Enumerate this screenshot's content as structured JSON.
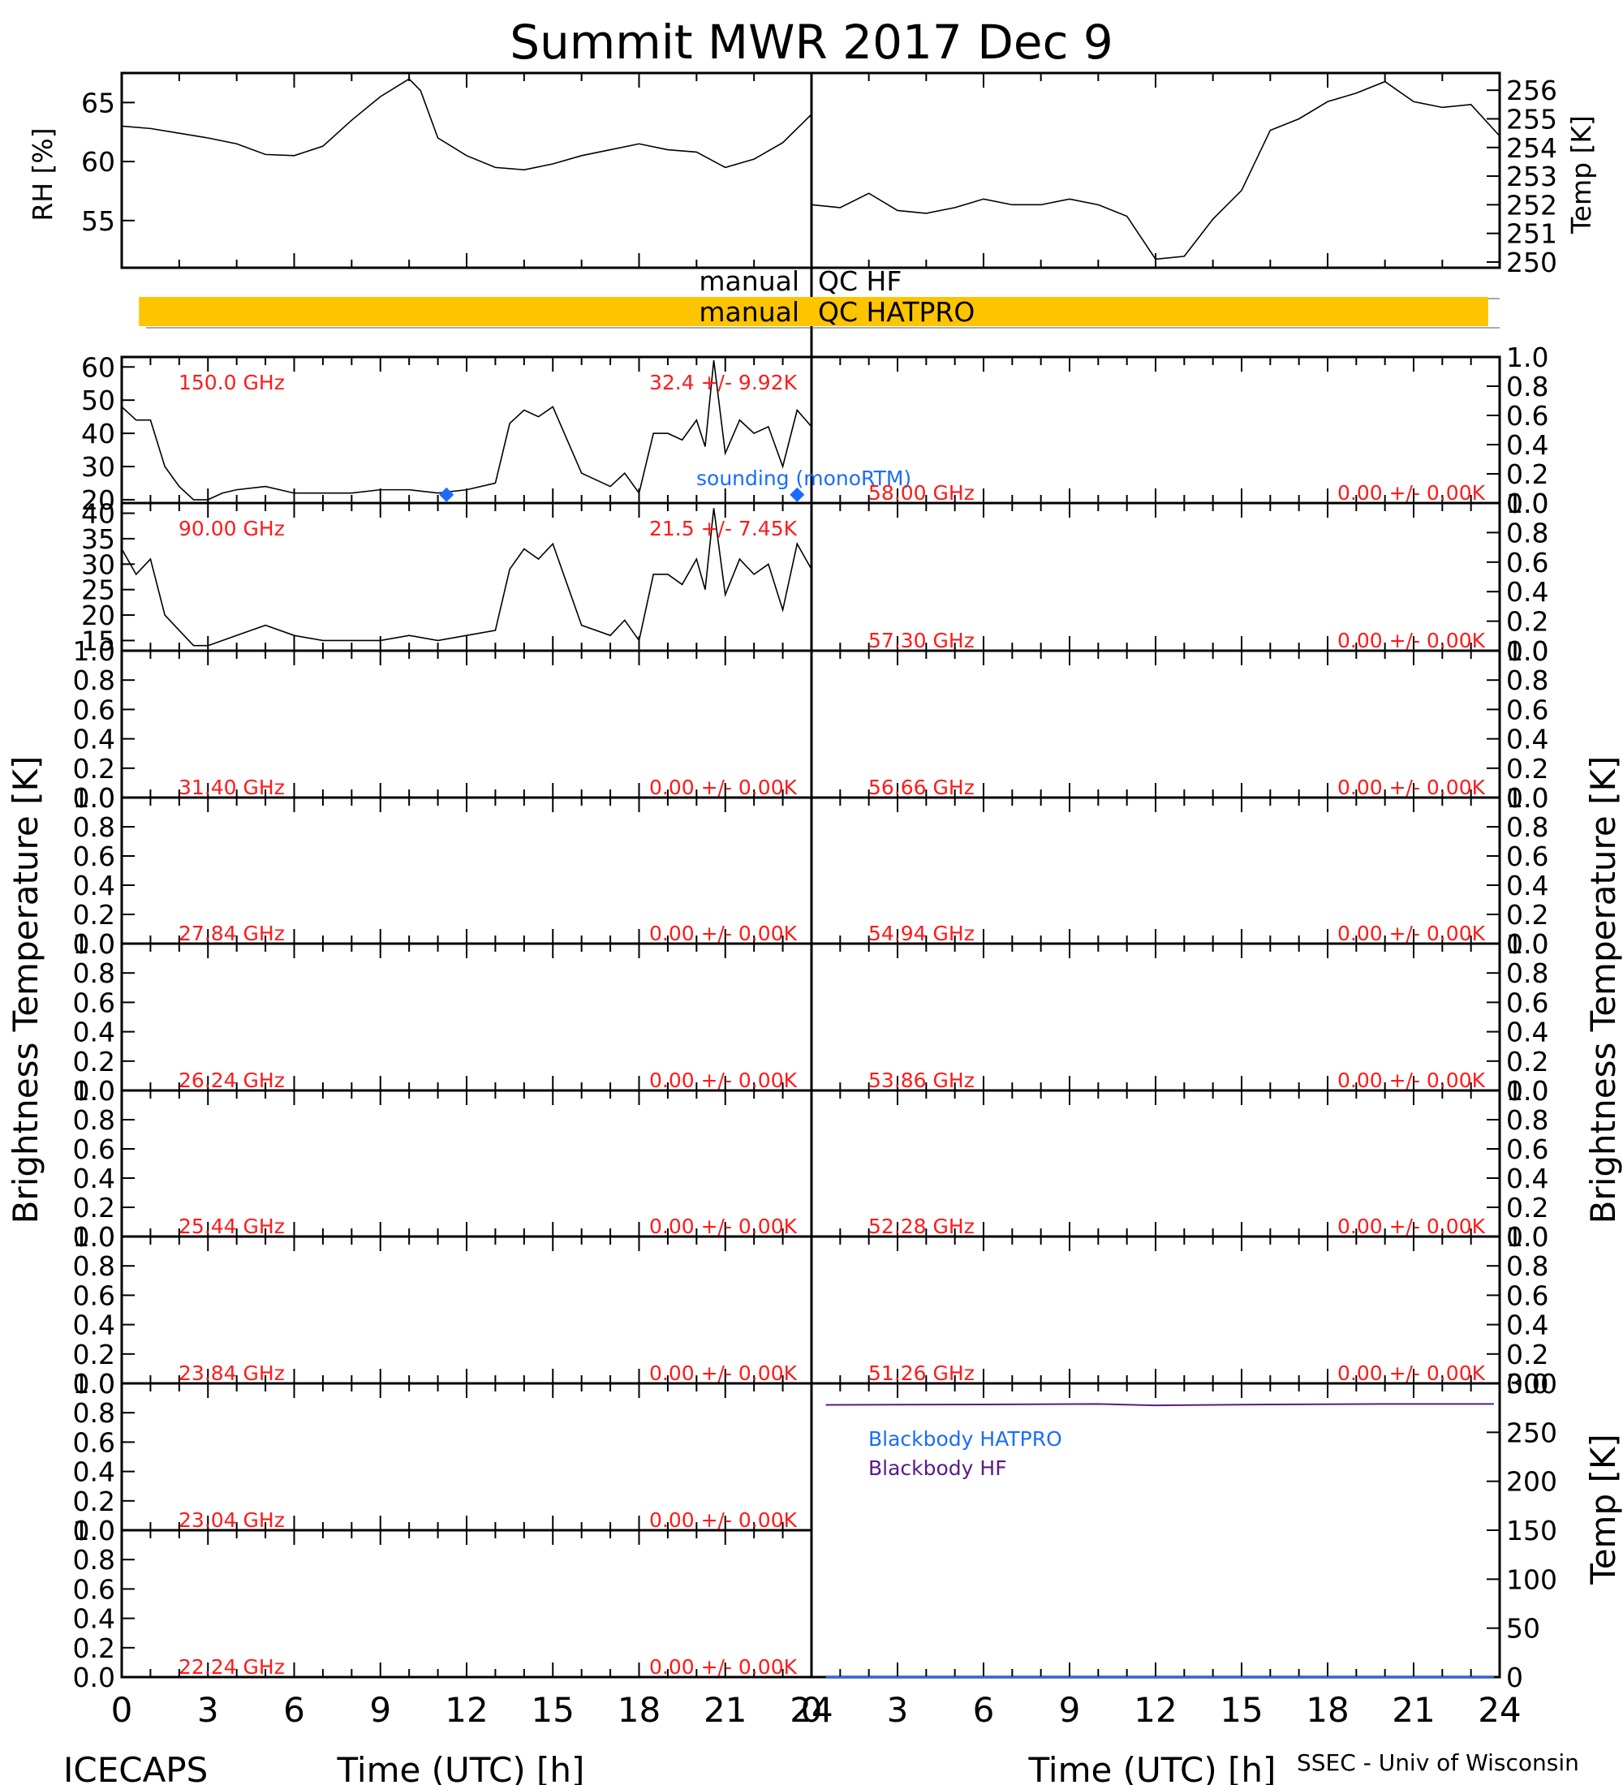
{
  "title": "Summit MWR 2017 Dec  9",
  "footer": {
    "left": "ICECAPS",
    "right": "SSEC - Univ of Wisconsin"
  },
  "xlabel": "Time (UTC) [h]",
  "left_ylabel": "Brightness Temperature [K]",
  "right_ylabel": "Brightness Temperature [K]",
  "qc": [
    {
      "label": "manual",
      "name": "QC HF",
      "color": "",
      "flag_range_h": []
    },
    {
      "label": "manual",
      "name": "QC HATPRO",
      "color": "#ffc400",
      "flag_range_h": [
        0.3,
        23.8
      ]
    }
  ],
  "legend": {
    "sounding": "sounding (monoRTM)",
    "blackbody_hatpro": "Blackbody HATPRO",
    "blackbody_hf": "Blackbody HF"
  },
  "colors": {
    "channel_text": "#ff1a1a",
    "sounding": "#1a6cff",
    "blackbody_hf": "#5a1a8a",
    "qc_flag": "#ffc400"
  },
  "chart_data": [
    {
      "id": "rh",
      "type": "line",
      "title": "",
      "xlabel": "",
      "ylabel": "RH [%]",
      "xlim": [
        0,
        12
      ],
      "ylim": [
        51,
        67.5
      ],
      "yticks": [
        "55",
        "60",
        "65"
      ],
      "x": [
        0,
        0.5,
        1,
        1.5,
        2,
        2.5,
        3,
        3.5,
        4,
        4.5,
        5,
        5.2,
        5.5,
        6,
        6.5,
        7,
        7.5,
        8,
        8.5,
        9,
        9.5,
        10,
        10.5,
        11,
        11.5,
        12
      ],
      "values": [
        63,
        62.8,
        62.4,
        62,
        61.5,
        60.6,
        60.5,
        61.3,
        63.5,
        65.5,
        67,
        66,
        62,
        60.5,
        59.5,
        59.3,
        59.8,
        60.5,
        61,
        61.5,
        61,
        60.8,
        59.5,
        60.2,
        61.6,
        64
      ]
    },
    {
      "id": "temp",
      "type": "line",
      "title": "",
      "xlabel": "",
      "ylabel": "Temp [K]",
      "xlim": [
        12,
        24
      ],
      "ylim": [
        249.8,
        256.6
      ],
      "yticks": [
        "250",
        "251",
        "252",
        "253",
        "254",
        "255",
        "256"
      ],
      "x": [
        12,
        12.5,
        13,
        13.5,
        14,
        14.5,
        15,
        15.5,
        16,
        16.5,
        17,
        17.5,
        18,
        18.5,
        19,
        19.5,
        20,
        20.5,
        21,
        21.5,
        22,
        22.5,
        23,
        23.5,
        24
      ],
      "values": [
        252,
        251.9,
        252.4,
        251.8,
        251.7,
        251.9,
        252.2,
        252.0,
        252.0,
        252.2,
        252.0,
        251.6,
        250.1,
        250.2,
        251.5,
        252.5,
        254.6,
        255.0,
        255.6,
        255.9,
        256.3,
        255.6,
        255.4,
        255.5,
        254.4
      ]
    },
    {
      "id": "ch150",
      "type": "line",
      "title": "",
      "xlabel": "",
      "ylabel": "",
      "label": "150.0 GHz",
      "stat": "32.4 +/-  9.92K",
      "xlim": [
        0,
        24
      ],
      "ylim": [
        19,
        63
      ],
      "yticks": [
        "20",
        "30",
        "40",
        "50",
        "60"
      ],
      "x": [
        0,
        0.5,
        1,
        1.5,
        2,
        2.5,
        3,
        3.5,
        4,
        5,
        6,
        7,
        8,
        9,
        10,
        11,
        12,
        13,
        13.5,
        14,
        14.5,
        15,
        16,
        17,
        17.5,
        18,
        18.5,
        19,
        19.5,
        20,
        20.3,
        20.6,
        21,
        21.5,
        22,
        22.5,
        23,
        23.5,
        24
      ],
      "values": [
        48,
        44,
        44,
        30,
        24,
        20,
        20,
        22,
        23,
        24,
        22,
        22,
        22,
        23,
        23,
        22,
        23,
        25,
        43,
        47,
        45,
        48,
        28,
        24,
        28,
        22,
        40,
        40,
        38,
        44,
        36,
        62,
        34,
        44,
        40,
        42,
        30,
        47,
        42
      ],
      "sounding": {
        "x": [
          11.3,
          23.5
        ],
        "values": [
          21.5,
          21.5
        ]
      }
    },
    {
      "id": "ch90",
      "type": "line",
      "title": "",
      "xlabel": "",
      "ylabel": "",
      "label": "90.00 GHz",
      "stat": "21.5 +/-  7.45K",
      "xlim": [
        0,
        24
      ],
      "ylim": [
        13,
        42
      ],
      "yticks": [
        "15",
        "20",
        "25",
        "30",
        "35",
        "40"
      ],
      "x": [
        0,
        0.5,
        1,
        1.5,
        2,
        2.5,
        3,
        3.5,
        4,
        5,
        6,
        7,
        8,
        9,
        10,
        11,
        12,
        13,
        13.5,
        14,
        14.5,
        15,
        16,
        17,
        17.5,
        18,
        18.5,
        19,
        19.5,
        20,
        20.3,
        20.6,
        21,
        21.5,
        22,
        22.5,
        23,
        23.5,
        24
      ],
      "values": [
        33,
        28,
        31,
        20,
        17,
        14,
        14,
        15,
        16,
        18,
        16,
        15,
        15,
        15,
        16,
        15,
        16,
        17,
        29,
        33,
        31,
        34,
        18,
        16,
        19,
        15,
        28,
        28,
        26,
        31,
        25,
        41,
        24,
        31,
        28,
        30,
        21,
        34,
        29
      ]
    },
    {
      "id": "ch58",
      "type": "line",
      "title": "",
      "xlabel": "",
      "ylabel": "",
      "label": "58.00 GHz",
      "stat": "0.00 +/-  0.00K",
      "xlim": [
        0,
        24
      ],
      "ylim": [
        0,
        1
      ],
      "yticks": [
        "0.0",
        "0.2",
        "0.4",
        "0.6",
        "0.8",
        "1.0"
      ],
      "x": [],
      "values": []
    },
    {
      "id": "ch57",
      "type": "line",
      "title": "",
      "xlabel": "",
      "ylabel": "",
      "label": "57.30 GHz",
      "stat": "0.00 +/-  0.00K",
      "xlim": [
        0,
        24
      ],
      "ylim": [
        0,
        1
      ],
      "yticks": [
        "0.0",
        "0.2",
        "0.4",
        "0.6",
        "0.8",
        "1.0"
      ],
      "x": [],
      "values": []
    },
    {
      "id": "ch31",
      "type": "line",
      "title": "",
      "xlabel": "",
      "ylabel": "",
      "label": "31.40 GHz",
      "stat": "0.00 +/-  0.00K",
      "xlim": [
        0,
        24
      ],
      "ylim": [
        0,
        1
      ],
      "yticks": [
        "0.0",
        "0.2",
        "0.4",
        "0.6",
        "0.8",
        "1.0"
      ],
      "x": [],
      "values": []
    },
    {
      "id": "ch5666",
      "type": "line",
      "title": "",
      "xlabel": "",
      "ylabel": "",
      "label": "56.66 GHz",
      "stat": "0.00 +/-  0.00K",
      "xlim": [
        0,
        24
      ],
      "ylim": [
        0,
        1
      ],
      "yticks": [
        "0.0",
        "0.2",
        "0.4",
        "0.6",
        "0.8",
        "1.0"
      ],
      "x": [],
      "values": []
    },
    {
      "id": "ch2784",
      "type": "line",
      "title": "",
      "xlabel": "",
      "ylabel": "",
      "label": "27.84 GHz",
      "stat": "0.00 +/-  0.00K",
      "xlim": [
        0,
        24
      ],
      "ylim": [
        0,
        1
      ],
      "yticks": [
        "0.0",
        "0.2",
        "0.4",
        "0.6",
        "0.8",
        "1.0"
      ],
      "x": [],
      "values": []
    },
    {
      "id": "ch5494",
      "type": "line",
      "title": "",
      "xlabel": "",
      "ylabel": "",
      "label": "54.94 GHz",
      "stat": "0.00 +/-  0.00K",
      "xlim": [
        0,
        24
      ],
      "ylim": [
        0,
        1
      ],
      "yticks": [
        "0.0",
        "0.2",
        "0.4",
        "0.6",
        "0.8",
        "1.0"
      ],
      "x": [],
      "values": []
    },
    {
      "id": "ch2624",
      "type": "line",
      "title": "",
      "xlabel": "",
      "ylabel": "",
      "label": "26.24 GHz",
      "stat": "0.00 +/-  0.00K",
      "xlim": [
        0,
        24
      ],
      "ylim": [
        0,
        1
      ],
      "yticks": [
        "0.0",
        "0.2",
        "0.4",
        "0.6",
        "0.8",
        "1.0"
      ],
      "x": [],
      "values": []
    },
    {
      "id": "ch5386",
      "type": "line",
      "title": "",
      "xlabel": "",
      "ylabel": "",
      "label": "53.86 GHz",
      "stat": "0.00 +/-  0.00K",
      "xlim": [
        0,
        24
      ],
      "ylim": [
        0,
        1
      ],
      "yticks": [
        "0.0",
        "0.2",
        "0.4",
        "0.6",
        "0.8",
        "1.0"
      ],
      "x": [],
      "values": []
    },
    {
      "id": "ch2544",
      "type": "line",
      "title": "",
      "xlabel": "",
      "ylabel": "",
      "label": "25.44 GHz",
      "stat": "0.00 +/-  0.00K",
      "xlim": [
        0,
        24
      ],
      "ylim": [
        0,
        1
      ],
      "yticks": [
        "0.0",
        "0.2",
        "0.4",
        "0.6",
        "0.8",
        "1.0"
      ],
      "x": [],
      "values": []
    },
    {
      "id": "ch5228",
      "type": "line",
      "title": "",
      "xlabel": "",
      "ylabel": "",
      "label": "52.28 GHz",
      "stat": "0.00 +/-  0.00K",
      "xlim": [
        0,
        24
      ],
      "ylim": [
        0,
        1
      ],
      "yticks": [
        "0.0",
        "0.2",
        "0.4",
        "0.6",
        "0.8",
        "1.0"
      ],
      "x": [],
      "values": []
    },
    {
      "id": "ch2384",
      "type": "line",
      "title": "",
      "xlabel": "",
      "ylabel": "",
      "label": "23.84 GHz",
      "stat": "0.00 +/-  0.00K",
      "xlim": [
        0,
        24
      ],
      "ylim": [
        0,
        1
      ],
      "yticks": [
        "0.0",
        "0.2",
        "0.4",
        "0.6",
        "0.8",
        "1.0"
      ],
      "x": [],
      "values": []
    },
    {
      "id": "ch5126",
      "type": "line",
      "title": "",
      "xlabel": "",
      "ylabel": "",
      "label": "51.26 GHz",
      "stat": "0.00 +/-  0.00K",
      "xlim": [
        0,
        24
      ],
      "ylim": [
        0,
        1
      ],
      "yticks": [
        "0.0",
        "0.2",
        "0.4",
        "0.6",
        "0.8",
        "1.0"
      ],
      "x": [],
      "values": []
    },
    {
      "id": "ch2304",
      "type": "line",
      "title": "",
      "xlabel": "",
      "ylabel": "",
      "label": "23.04 GHz",
      "stat": "0.00 +/-  0.00K",
      "xlim": [
        0,
        24
      ],
      "ylim": [
        0,
        1
      ],
      "yticks": [
        "0.0",
        "0.2",
        "0.4",
        "0.6",
        "0.8",
        "1.0"
      ],
      "x": [],
      "values": []
    },
    {
      "id": "ch2224",
      "type": "line",
      "title": "",
      "xlabel": "",
      "ylabel": "",
      "label": "22.24 GHz",
      "stat": "0.00 +/-  0.00K",
      "xlim": [
        0,
        24
      ],
      "ylim": [
        0,
        1
      ],
      "yticks": [
        "0.0",
        "0.2",
        "0.4",
        "0.6",
        "0.8",
        "1.0"
      ],
      "x": [],
      "values": []
    },
    {
      "id": "blackbody",
      "type": "line",
      "title": "",
      "xlabel": "",
      "ylabel": "Temp [K]",
      "xlim": [
        0,
        24
      ],
      "ylim": [
        0,
        300
      ],
      "yticks": [
        "0",
        "50",
        "100",
        "150",
        "200",
        "250",
        "300"
      ],
      "series": [
        {
          "name": "Blackbody HF",
          "color": "#5a1a8a",
          "x": [
            0.5,
            6,
            10,
            12,
            16,
            20,
            23.8
          ],
          "values": [
            278,
            278.5,
            279,
            277.5,
            278.5,
            279,
            279
          ]
        },
        {
          "name": "Blackbody HATPRO",
          "color": "#1a6cff",
          "x": [
            0.5,
            23.8
          ],
          "values": [
            0,
            0
          ]
        }
      ]
    }
  ],
  "xticks": [
    "0",
    "3",
    "6",
    "9",
    "12",
    "15",
    "18",
    "21",
    "24"
  ]
}
